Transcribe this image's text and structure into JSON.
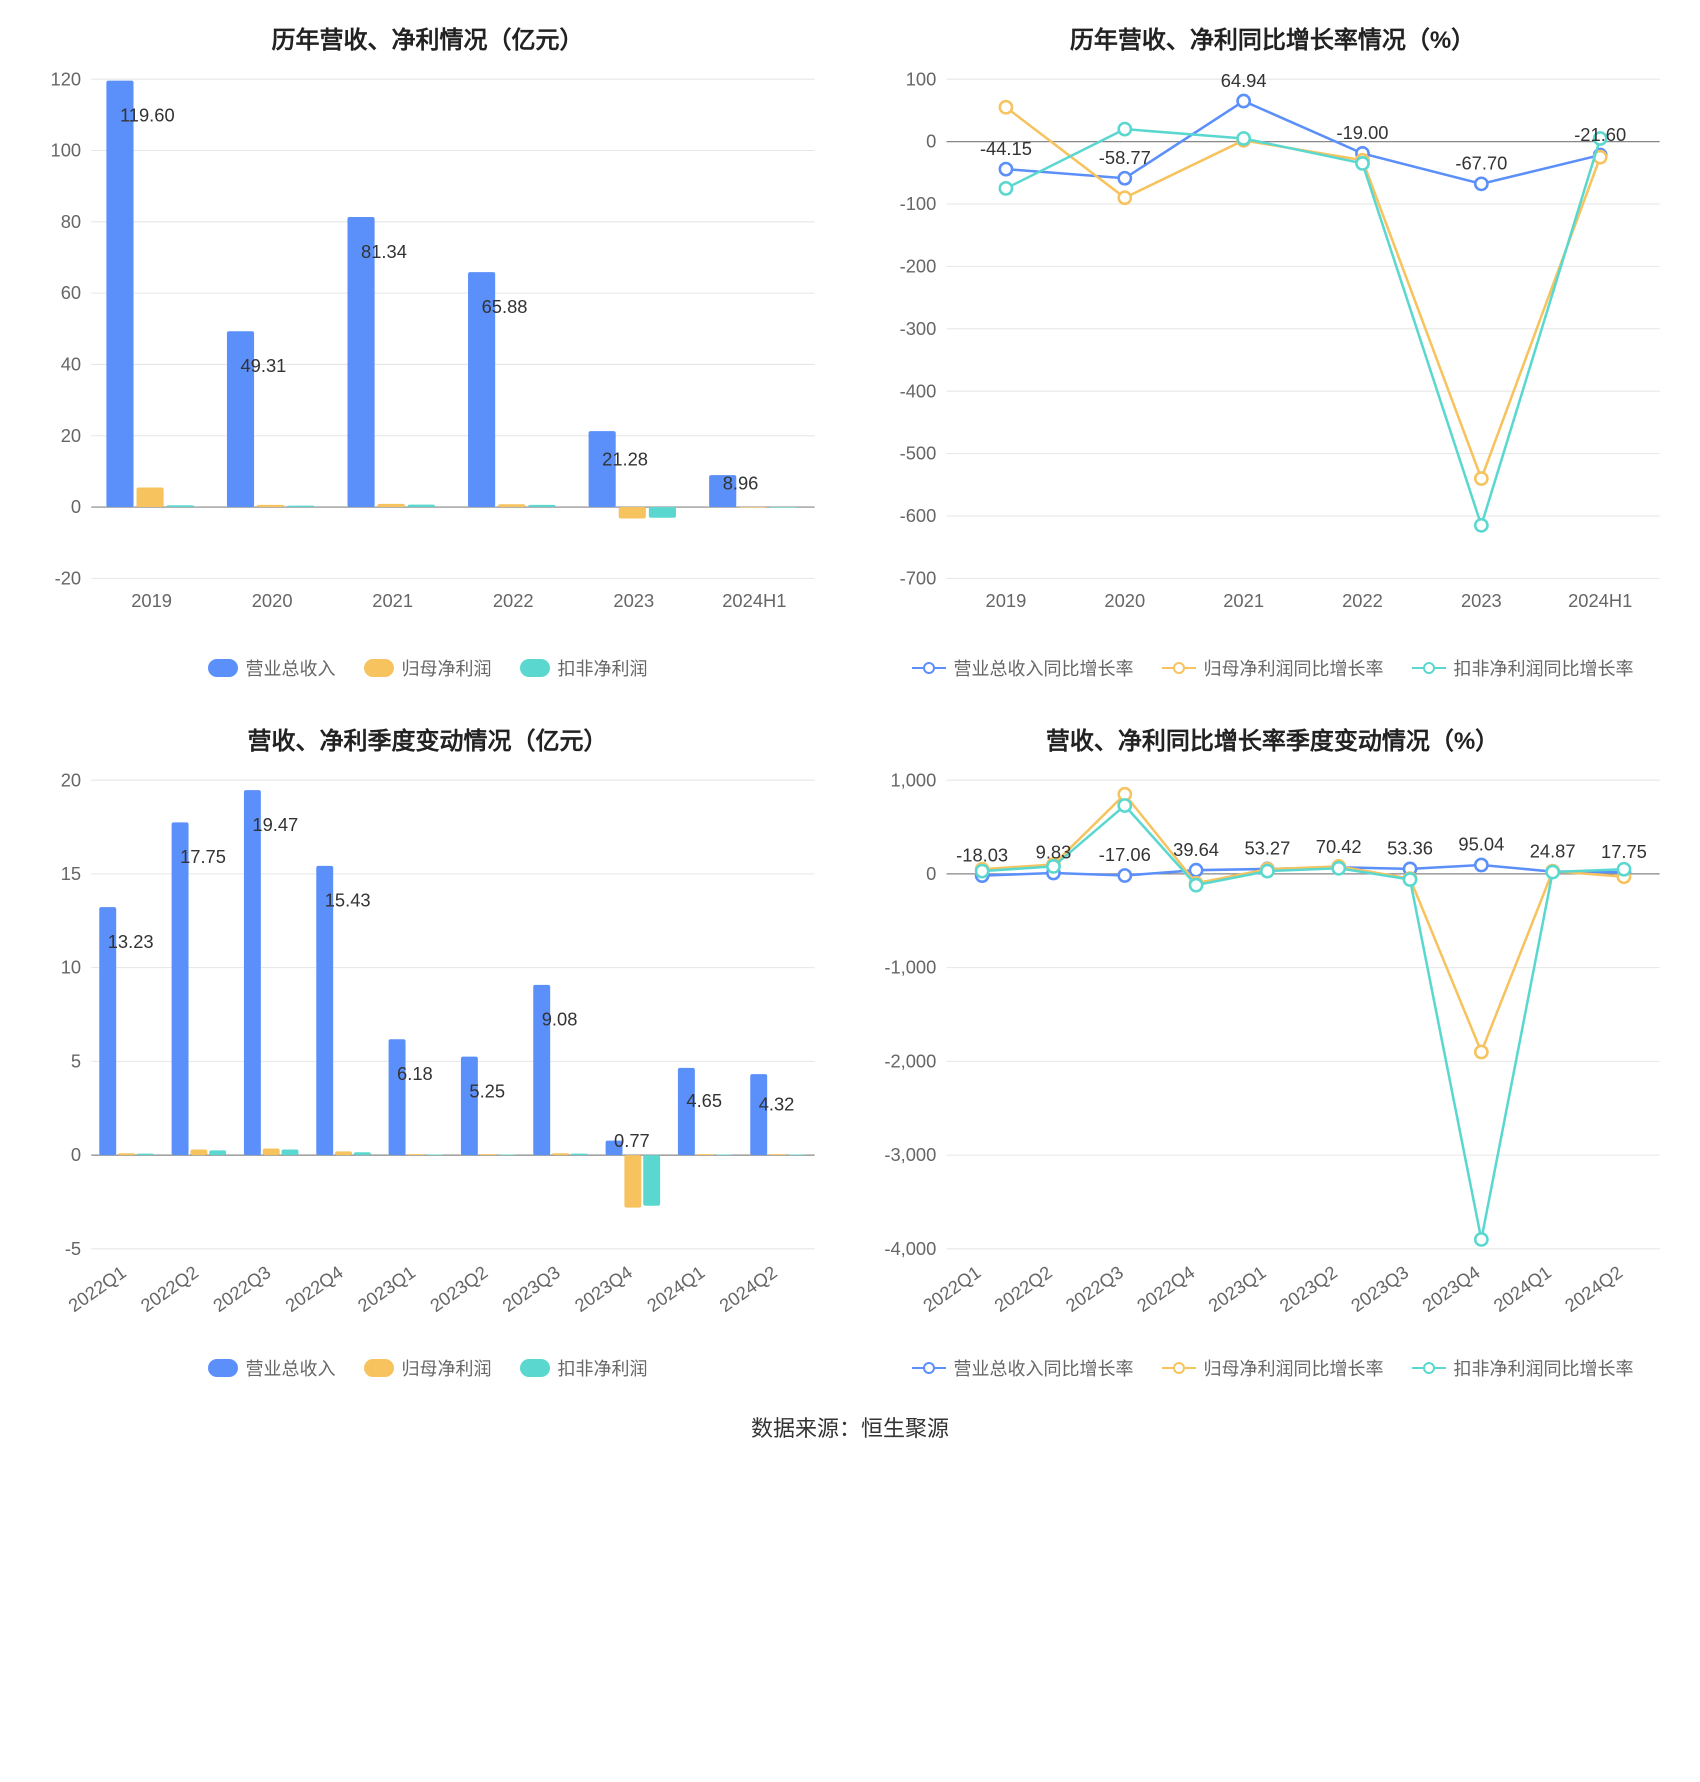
{
  "footer": "数据来源：恒生聚源",
  "colors": {
    "blue": "#5b8ff9",
    "orange": "#f6c35e",
    "teal": "#5ad8d0",
    "line_blue": "#5b8ff9",
    "line_orange": "#f6c35e",
    "line_teal": "#5ad8d0",
    "grid": "#e6e6e6",
    "axis": "#888888",
    "text": "#666666",
    "bg": "#ffffff"
  },
  "chart1": {
    "title": "历年营收、净利情况（亿元）",
    "type": "bar",
    "categories": [
      "2019",
      "2020",
      "2021",
      "2022",
      "2023",
      "2024H1"
    ],
    "series": [
      {
        "name": "营业总收入",
        "color": "#5b8ff9",
        "values": [
          119.6,
          49.31,
          81.34,
          65.88,
          21.28,
          8.96
        ]
      },
      {
        "name": "归母净利润",
        "color": "#f6c35e",
        "values": [
          5.5,
          0.6,
          0.9,
          0.8,
          -3.2,
          -0.1
        ]
      },
      {
        "name": "扣非净利润",
        "color": "#5ad8d0",
        "values": [
          0.5,
          0.4,
          0.7,
          0.6,
          -3.0,
          -0.1
        ]
      }
    ],
    "labels_on_series": 0,
    "ylim": [
      -20,
      120
    ],
    "ytick_step": 20,
    "label_fontsize": 18,
    "title_fontsize": 24,
    "bar_group_width": 0.75,
    "legend": [
      "营业总收入",
      "归母净利润",
      "扣非净利润"
    ]
  },
  "chart2": {
    "title": "历年营收、净利同比增长率情况（%）",
    "type": "line",
    "categories": [
      "2019",
      "2020",
      "2021",
      "2022",
      "2023",
      "2024H1"
    ],
    "series": [
      {
        "name": "营业总收入同比增长率",
        "color": "#5b8ff9",
        "values": [
          -44.15,
          -58.77,
          64.94,
          -19.0,
          -67.7,
          -21.6
        ]
      },
      {
        "name": "归母净利润同比增长率",
        "color": "#f6c35e",
        "values": [
          55,
          -90,
          2,
          -30,
          -540,
          -25
        ]
      },
      {
        "name": "扣非净利润同比增长率",
        "color": "#5ad8d0",
        "values": [
          -75,
          20,
          5,
          -35,
          -615,
          5
        ]
      }
    ],
    "point_labels": [
      {
        "x": 0,
        "text": "-44.15"
      },
      {
        "x": 1,
        "text": "-58.77"
      },
      {
        "x": 2,
        "text": "64.94"
      },
      {
        "x": 3,
        "text": "-19.00"
      },
      {
        "x": 4,
        "text": "-67.70"
      },
      {
        "x": 5,
        "text": "-21.60"
      }
    ],
    "ylim": [
      -700,
      100
    ],
    "ytick_step": 100,
    "label_fontsize": 18,
    "title_fontsize": 24,
    "marker_radius": 6,
    "legend": [
      "营业总收入同比增长率",
      "归母净利润同比增长率",
      "扣非净利润同比增长率"
    ]
  },
  "chart3": {
    "title": "营收、净利季度变动情况（亿元）",
    "type": "bar",
    "categories": [
      "2022Q1",
      "2022Q2",
      "2022Q3",
      "2022Q4",
      "2023Q1",
      "2023Q2",
      "2023Q3",
      "2023Q4",
      "2024Q1",
      "2024Q2"
    ],
    "series": [
      {
        "name": "营业总收入",
        "color": "#5b8ff9",
        "values": [
          13.23,
          17.75,
          19.47,
          15.43,
          6.18,
          5.25,
          9.08,
          0.77,
          4.65,
          4.32
        ]
      },
      {
        "name": "归母净利润",
        "color": "#f6c35e",
        "values": [
          0.1,
          0.3,
          0.35,
          0.2,
          0.05,
          0.05,
          0.1,
          -2.8,
          0.05,
          0.05
        ]
      },
      {
        "name": "扣非净利润",
        "color": "#5ad8d0",
        "values": [
          0.08,
          0.25,
          0.3,
          0.15,
          0.03,
          0.03,
          0.08,
          -2.7,
          0.03,
          0.03
        ]
      }
    ],
    "labels_on_series": 0,
    "ylim": [
      -5,
      20
    ],
    "ytick_step": 5,
    "label_fontsize": 18,
    "title_fontsize": 24,
    "bar_group_width": 0.78,
    "x_rotate": -35,
    "legend": [
      "营业总收入",
      "归母净利润",
      "扣非净利润"
    ]
  },
  "chart4": {
    "title": "营收、净利同比增长率季度变动情况（%）",
    "type": "line",
    "categories": [
      "2022Q1",
      "2022Q2",
      "2022Q3",
      "2022Q4",
      "2023Q1",
      "2023Q2",
      "2023Q3",
      "2023Q4",
      "2024Q1",
      "2024Q2"
    ],
    "series": [
      {
        "name": "营业总收入同比增长率",
        "color": "#5b8ff9",
        "values": [
          -18.03,
          9.83,
          -17.06,
          39.64,
          53.27,
          70.42,
          53.36,
          95.04,
          24.87,
          17.75
        ]
      },
      {
        "name": "归母净利润同比增长率",
        "color": "#f6c35e",
        "values": [
          50,
          100,
          850,
          -100,
          50,
          80,
          -50,
          -1900,
          30,
          -30
        ]
      },
      {
        "name": "扣非净利润同比增长率",
        "color": "#5ad8d0",
        "values": [
          30,
          80,
          730,
          -120,
          30,
          60,
          -60,
          -3900,
          20,
          50
        ]
      }
    ],
    "point_labels": [
      {
        "x": 0,
        "text": "-18.03"
      },
      {
        "x": 1,
        "text": "9.83"
      },
      {
        "x": 2,
        "text": "-17.06"
      },
      {
        "x": 3,
        "text": "39.64"
      },
      {
        "x": 4,
        "text": "53.27"
      },
      {
        "x": 5,
        "text": "70.42"
      },
      {
        "x": 6,
        "text": "53.36"
      },
      {
        "x": 7,
        "text": "95.04"
      },
      {
        "x": 8,
        "text": "24.87"
      },
      {
        "x": 9,
        "text": "17.75"
      }
    ],
    "ylim": [
      -4000,
      1000
    ],
    "ytick_step": 1000,
    "label_fontsize": 18,
    "title_fontsize": 24,
    "marker_radius": 6,
    "x_rotate": -35,
    "legend": [
      "营业总收入同比增长率",
      "归母净利润同比增长率",
      "扣非净利润同比增长率"
    ]
  }
}
